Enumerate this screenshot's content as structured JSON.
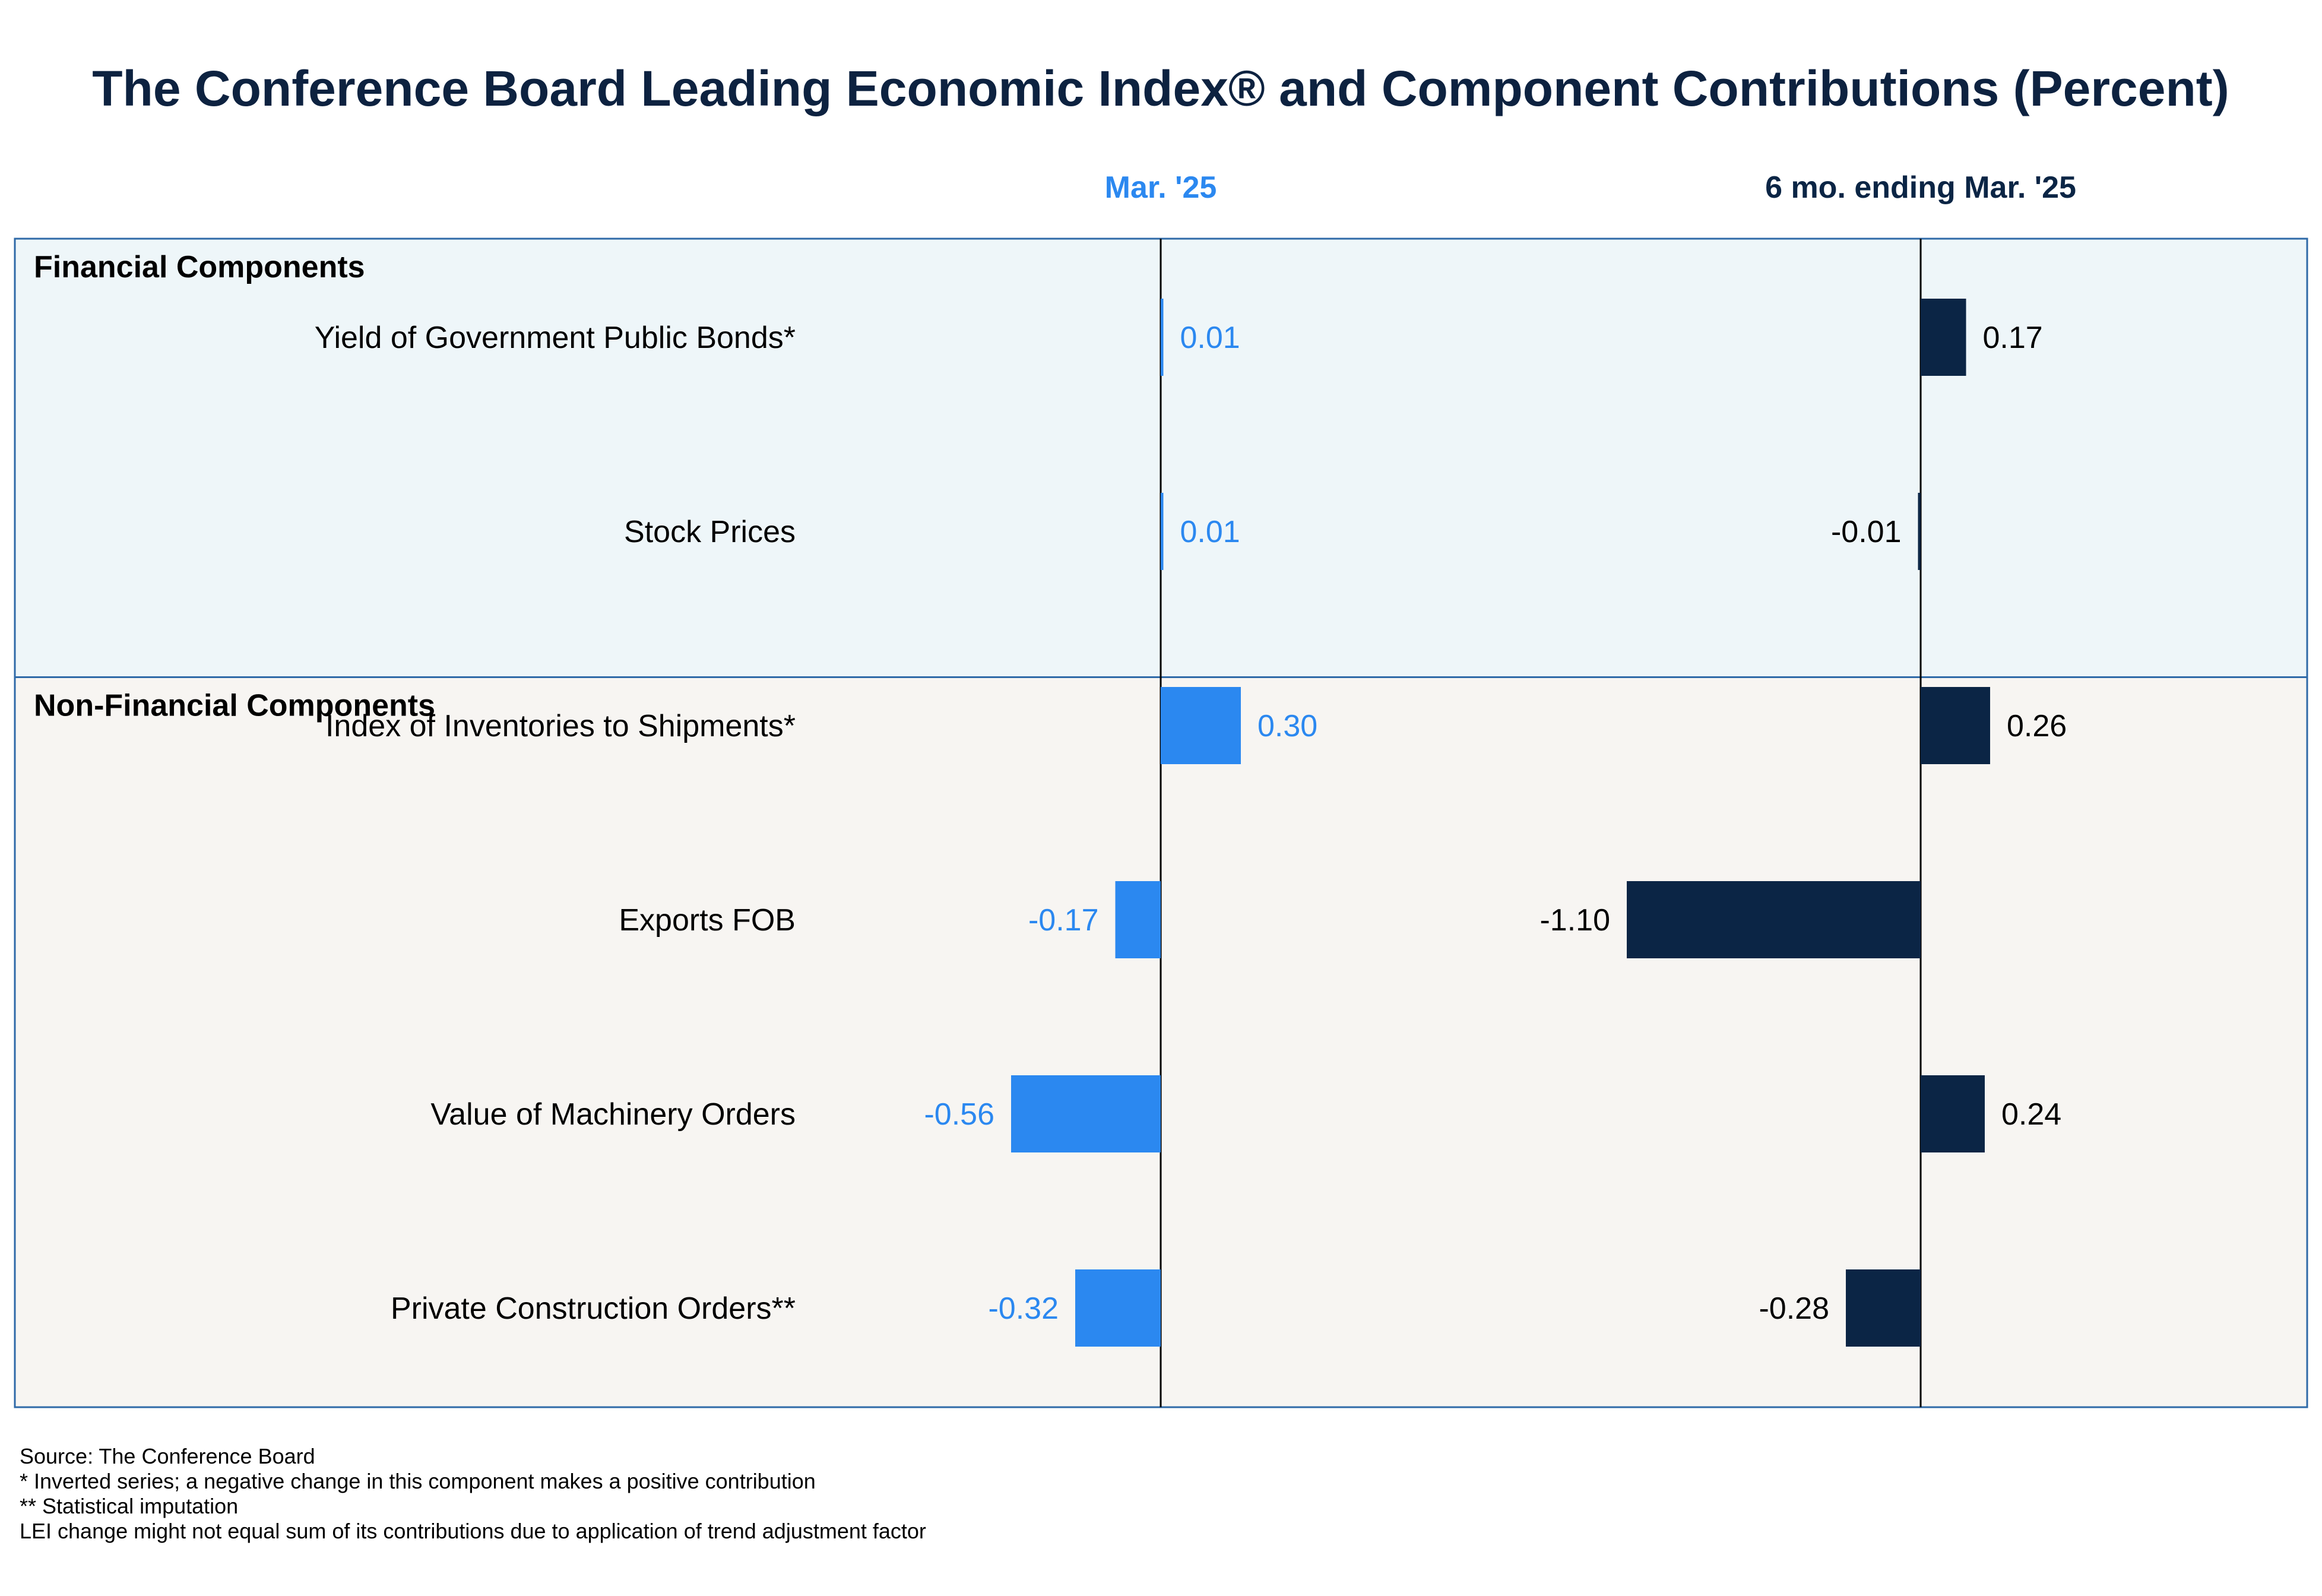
{
  "colors": {
    "title": "#0d2240",
    "series_month": "#2b88f0",
    "series_six_month": "#0b2545",
    "panel_financial_bg": "#eef6f9",
    "panel_nonfinancial_bg": "#f7f5f2",
    "panel_border": "#2f6aa8",
    "axis_line": "#000000",
    "text": "#000000"
  },
  "chart_data": {
    "type": "bar",
    "orientation": "horizontal",
    "title": "The Conference Board Leading Economic Index® and Component Contributions (Percent)",
    "column_headers": [
      "Mar. '25",
      "6 mo. ending Mar. '25"
    ],
    "groups": [
      {
        "name": "Financial Components",
        "rows": [
          {
            "label": "Yield of Government Public Bonds*",
            "month": 0.01,
            "six_month": 0.17
          },
          {
            "label": "Stock Prices",
            "month": 0.01,
            "six_month": -0.01
          }
        ]
      },
      {
        "name": "Non-Financial Components",
        "rows": [
          {
            "label": "Index of Inventories to Shipments*",
            "month": 0.3,
            "six_month": 0.26
          },
          {
            "label": "Exports FOB",
            "month": -0.17,
            "six_month": -1.1
          },
          {
            "label": "Value of Machinery Orders",
            "month": -0.56,
            "six_month": 0.24
          },
          {
            "label": "Private Construction Orders**",
            "month": -0.32,
            "six_month": -0.28
          }
        ]
      }
    ],
    "series": [
      {
        "name": "Mar. '25",
        "key": "month",
        "color": "#2b88f0"
      },
      {
        "name": "6 mo. ending Mar. '25",
        "key": "six_month",
        "color": "#0b2545"
      }
    ],
    "value_format": "2 decimals",
    "grid": false
  },
  "footnotes": [
    "Source: The Conference Board",
    "*  Inverted series; a negative change in this component makes a positive contribution",
    "** Statistical imputation",
    "LEI change might not equal sum of its contributions due to application of trend adjustment factor"
  ]
}
